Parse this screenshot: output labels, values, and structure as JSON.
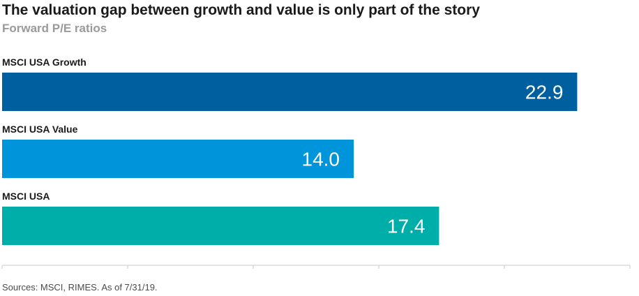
{
  "chart_data": {
    "type": "bar",
    "orientation": "horizontal",
    "title": "The valuation gap between growth and value is only part of the story",
    "subtitle": "Forward P/E ratios",
    "categories": [
      "MSCI USA Growth",
      "MSCI USA Value",
      "MSCI USA"
    ],
    "values": [
      22.9,
      14.0,
      17.4
    ],
    "value_labels": [
      "22.9",
      "14.0",
      "17.4"
    ],
    "colors": [
      "#005f9e",
      "#0095db",
      "#00aea9"
    ],
    "xlim": [
      0,
      25
    ],
    "grid": false,
    "legend": "none"
  },
  "source": "Sources: MSCI, RIMES. As of 7/31/19."
}
